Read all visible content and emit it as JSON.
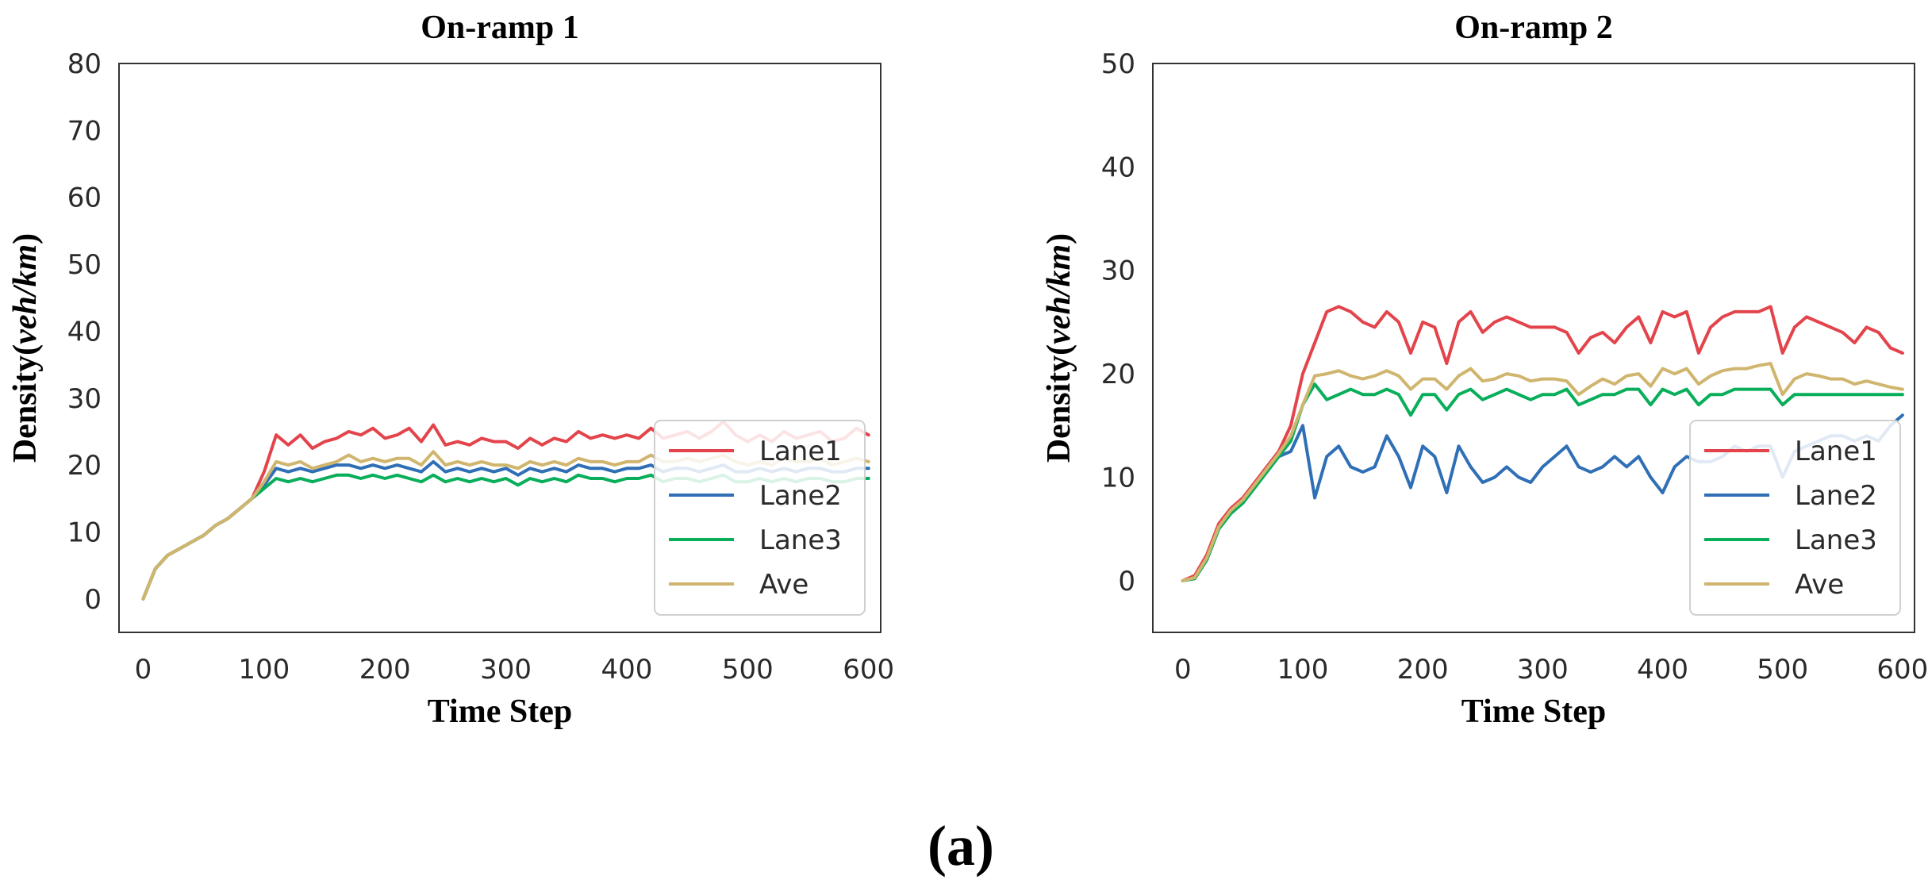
{
  "figure": {
    "panel_label": "(a)"
  },
  "colors": {
    "Lane1": "#e3444b",
    "Lane2": "#2f6fb6",
    "Lane3": "#08ae5a",
    "Ave": "#cfb56d"
  },
  "chart_data": [
    {
      "type": "line",
      "title": "On-ramp 1",
      "xlabel": "Time Step",
      "ylabel_prefix": "Density(",
      "ylabel_unit": "veh/km",
      "ylabel_suffix": ")",
      "xlim": [
        -20,
        610
      ],
      "ylim": [
        -5,
        80
      ],
      "xticks": [
        0,
        100,
        200,
        300,
        400,
        500,
        600
      ],
      "yticks": [
        0,
        10,
        20,
        30,
        40,
        50,
        60,
        70,
        80
      ],
      "legend": {
        "position": "lower-right",
        "entries": [
          "Lane1",
          "Lane2",
          "Lane3",
          "Ave"
        ]
      },
      "x": [
        0,
        10,
        20,
        30,
        40,
        50,
        60,
        70,
        80,
        90,
        100,
        110,
        120,
        130,
        140,
        150,
        160,
        170,
        180,
        190,
        200,
        210,
        220,
        230,
        240,
        250,
        260,
        270,
        280,
        290,
        300,
        310,
        320,
        330,
        340,
        350,
        360,
        370,
        380,
        390,
        400,
        410,
        420,
        430,
        440,
        450,
        460,
        470,
        480,
        490,
        500,
        510,
        520,
        530,
        540,
        550,
        560,
        570,
        580,
        590,
        600
      ],
      "series": [
        {
          "name": "Lane1",
          "values": [
            0,
            4.5,
            6.5,
            7.5,
            8.5,
            9.5,
            11,
            12,
            13.5,
            15,
            19,
            24.5,
            23,
            24.5,
            22.5,
            23.5,
            24,
            25,
            24.5,
            25.5,
            24,
            24.5,
            25.5,
            23.5,
            26,
            23,
            23.5,
            23,
            24,
            23.5,
            23.5,
            22.5,
            24,
            23,
            24,
            23.5,
            25,
            24,
            24.5,
            24,
            24.5,
            24,
            25.5,
            24,
            24.5,
            25,
            24,
            25,
            26.5,
            24.5,
            23.5,
            24.5,
            23.5,
            25,
            24,
            24.5,
            25,
            23.5,
            24,
            25.5,
            24.5
          ]
        },
        {
          "name": "Lane2",
          "values": [
            0,
            4.5,
            6.5,
            7.5,
            8.5,
            9.5,
            11,
            12,
            13.5,
            15,
            17,
            19.5,
            19,
            19.5,
            19,
            19.5,
            20,
            20,
            19.5,
            20,
            19.5,
            20,
            19.5,
            19,
            20.5,
            19,
            19.5,
            19,
            19.5,
            19,
            19.5,
            18.5,
            19.5,
            19,
            19.5,
            19,
            20,
            19.5,
            19.5,
            19,
            19.5,
            19.5,
            20,
            19,
            19.5,
            19.5,
            19,
            19.5,
            20,
            19,
            19,
            19.5,
            19,
            19.5,
            19,
            19.5,
            19.5,
            19,
            19,
            19.5,
            19.5
          ]
        },
        {
          "name": "Lane3",
          "values": [
            0,
            4.5,
            6.5,
            7.5,
            8.5,
            9.5,
            11,
            12,
            13.5,
            15,
            16.5,
            18,
            17.5,
            18,
            17.5,
            18,
            18.5,
            18.5,
            18,
            18.5,
            18,
            18.5,
            18,
            17.5,
            18.5,
            17.5,
            18,
            17.5,
            18,
            17.5,
            18,
            17,
            18,
            17.5,
            18,
            17.5,
            18.5,
            18,
            18,
            17.5,
            18,
            18,
            18.5,
            17.5,
            18,
            18,
            17.5,
            18,
            18.5,
            17.5,
            17.5,
            18,
            17.5,
            18,
            17.5,
            18,
            18,
            17.5,
            17.5,
            18,
            18
          ]
        },
        {
          "name": "Ave",
          "values": [
            0,
            4.5,
            6.5,
            7.5,
            8.5,
            9.5,
            11,
            12,
            13.5,
            15,
            17.5,
            20.5,
            20,
            20.5,
            19.5,
            20,
            20.5,
            21.5,
            20.5,
            21,
            20.5,
            21,
            21,
            20,
            22,
            20,
            20.5,
            20,
            20.5,
            20,
            20,
            19.5,
            20.5,
            20,
            20.5,
            20,
            21,
            20.5,
            20.5,
            20,
            20.5,
            20.5,
            21.5,
            20.5,
            20.5,
            21,
            20.5,
            21,
            21.5,
            20.5,
            20,
            20.5,
            20,
            21,
            20.5,
            20.5,
            21,
            20,
            20.5,
            21,
            20.5
          ]
        }
      ]
    },
    {
      "type": "line",
      "title": "On-ramp 2",
      "xlabel": "Time Step",
      "ylabel_prefix": "Density(",
      "ylabel_unit": "veh/km",
      "ylabel_suffix": ")",
      "xlim": [
        -25,
        610
      ],
      "ylim": [
        -5,
        50
      ],
      "xticks": [
        0,
        100,
        200,
        300,
        400,
        500,
        600
      ],
      "yticks": [
        0,
        10,
        20,
        30,
        40,
        50
      ],
      "legend": {
        "position": "lower-right",
        "entries": [
          "Lane1",
          "Lane2",
          "Lane3",
          "Ave"
        ]
      },
      "x": [
        0,
        10,
        20,
        30,
        40,
        50,
        60,
        70,
        80,
        90,
        100,
        110,
        120,
        130,
        140,
        150,
        160,
        170,
        180,
        190,
        200,
        210,
        220,
        230,
        240,
        250,
        260,
        270,
        280,
        290,
        300,
        310,
        320,
        330,
        340,
        350,
        360,
        370,
        380,
        390,
        400,
        410,
        420,
        430,
        440,
        450,
        460,
        470,
        480,
        490,
        500,
        510,
        520,
        530,
        540,
        550,
        560,
        570,
        580,
        590,
        600
      ],
      "series": [
        {
          "name": "Lane1",
          "values": [
            0,
            0.5,
            2.5,
            5.5,
            7,
            8,
            9.5,
            11,
            12.5,
            15,
            20,
            23,
            26,
            26.5,
            26,
            25,
            24.5,
            26,
            25,
            22,
            25,
            24.5,
            21,
            25,
            26,
            24,
            25,
            25.5,
            25,
            24.5,
            24.5,
            24.5,
            24,
            22,
            23.5,
            24,
            23,
            24.5,
            25.5,
            23,
            26,
            25.5,
            26,
            22,
            24.5,
            25.5,
            26,
            26,
            26,
            26.5,
            22,
            24.5,
            25.5,
            25,
            24.5,
            24,
            23,
            24.5,
            24,
            22.5,
            22
          ]
        },
        {
          "name": "Lane2",
          "values": [
            0,
            0.2,
            2,
            5,
            6.5,
            7.5,
            9,
            10.5,
            12,
            12.5,
            15,
            8,
            12,
            13,
            11,
            10.5,
            11,
            14,
            12,
            9,
            13,
            12,
            8.5,
            13,
            11,
            9.5,
            10,
            11,
            10,
            9.5,
            11,
            12,
            13,
            11,
            10.5,
            11,
            12,
            11,
            12,
            10,
            8.5,
            11,
            12,
            11.5,
            11.5,
            12,
            13,
            12.5,
            13,
            13,
            10,
            12.5,
            13,
            13.5,
            14,
            14,
            13.5,
            14,
            13.5,
            15,
            16
          ]
        },
        {
          "name": "Lane3",
          "values": [
            0,
            0.2,
            2,
            5,
            6.5,
            7.5,
            9,
            10.5,
            12,
            13.5,
            17,
            19,
            17.5,
            18,
            18.5,
            18,
            18,
            18.5,
            18,
            16,
            18,
            18,
            16.5,
            18,
            18.5,
            17.5,
            18,
            18.5,
            18,
            17.5,
            18,
            18,
            18.5,
            17,
            17.5,
            18,
            18,
            18.5,
            18.5,
            17,
            18.5,
            18,
            18.5,
            17,
            18,
            18,
            18.5,
            18.5,
            18.5,
            18.5,
            17,
            18,
            18,
            18,
            18,
            18,
            18,
            18,
            18,
            18,
            18
          ]
        },
        {
          "name": "Ave",
          "values": [
            0,
            0.3,
            2.2,
            5.2,
            6.8,
            7.8,
            9.3,
            10.8,
            12.3,
            14,
            17,
            19.8,
            20,
            20.3,
            19.8,
            19.5,
            19.8,
            20.3,
            19.8,
            18.5,
            19.5,
            19.5,
            18.5,
            19.8,
            20.5,
            19.3,
            19.5,
            20,
            19.8,
            19.3,
            19.5,
            19.5,
            19.3,
            18,
            18.8,
            19.5,
            19,
            19.8,
            20,
            18.8,
            20.5,
            20,
            20.5,
            19,
            19.8,
            20.3,
            20.5,
            20.5,
            20.8,
            21,
            18,
            19.5,
            20,
            19.8,
            19.5,
            19.5,
            19,
            19.3,
            19,
            18.7,
            18.5
          ]
        }
      ]
    }
  ]
}
